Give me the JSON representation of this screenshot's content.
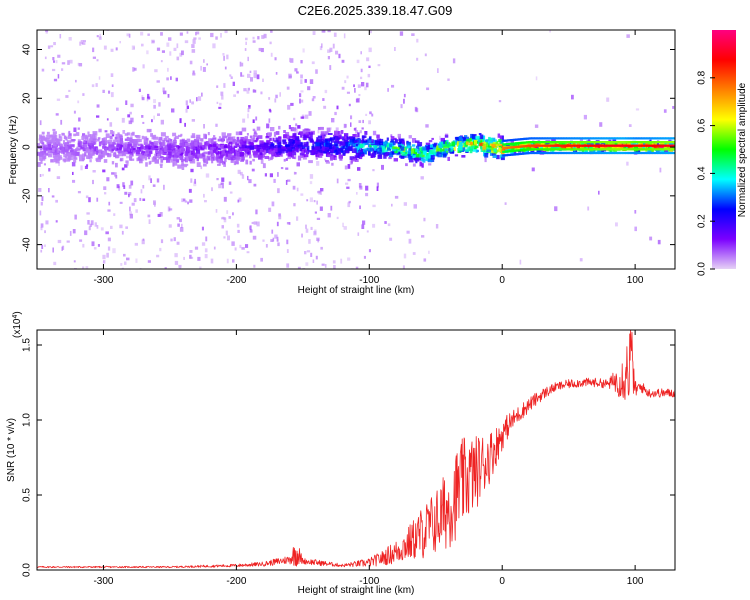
{
  "figure": {
    "title": "C2E6.2025.339.18.47.G09"
  },
  "chart_data": [
    {
      "type": "heatmap",
      "title": "C2E6.2025.339.18.47.G09",
      "xlabel": "Height of straight line (km)",
      "ylabel": "Frequency (Hz)",
      "xlim": [
        -350,
        130
      ],
      "ylim": [
        -50,
        48
      ],
      "xticks": [
        -300,
        -200,
        -100,
        0,
        100
      ],
      "yticks": [
        -40,
        -20,
        0,
        20,
        40
      ],
      "colorbar": {
        "label": "Normalized spectral amplitude",
        "range": [
          0.0,
          1.0
        ],
        "ticks": [
          "0.0",
          "0.2",
          "0.4",
          "0.6",
          "0.8"
        ],
        "tick_values": [
          0.0,
          0.2,
          0.4,
          0.6,
          0.8
        ],
        "colors": [
          "#e6d2f5",
          "#7b00ff",
          "#0000ff",
          "#00ffff",
          "#00ff00",
          "#ffff00",
          "#ff8000",
          "#ff0000",
          "#ff0080"
        ]
      },
      "ridge": {
        "description_points_x": [
          -350,
          -300,
          -250,
          -200,
          -150,
          -120,
          -100,
          -80,
          -60,
          -40,
          -20,
          0,
          20,
          50,
          90,
          100,
          130
        ],
        "center_freq": [
          0,
          1,
          -1,
          0,
          2,
          1,
          1,
          0,
          -2,
          1,
          2,
          0,
          1,
          1,
          1,
          1,
          1
        ],
        "amplitude": [
          0.08,
          0.1,
          0.12,
          0.15,
          0.25,
          0.3,
          0.4,
          0.5,
          0.55,
          0.6,
          0.7,
          0.8,
          0.85,
          0.9,
          0.95,
          0.9,
          0.95
        ]
      }
    },
    {
      "type": "line",
      "title": "",
      "xlabel": "Height of straight line (km)",
      "ylabel": "SNR (10 * v/v)",
      "scale_label": "(x10",
      "scale_exponent": "4",
      "scale_suffix": ")",
      "xlim": [
        -350,
        130
      ],
      "ylim": [
        0,
        1.6
      ],
      "xticks": [
        -300,
        -200,
        -100,
        0,
        100
      ],
      "yticks": [
        "0.0",
        "0.5",
        "1.0",
        "1.5"
      ],
      "ytick_values": [
        0.0,
        0.5,
        1.0,
        1.5
      ],
      "color": "#ee2222",
      "series": [
        {
          "name": "SNR",
          "x": [
            -350,
            -300,
            -250,
            -200,
            -180,
            -160,
            -155,
            -150,
            -140,
            -120,
            -110,
            -100,
            -90,
            -80,
            -70,
            -60,
            -50,
            -40,
            -35,
            -30,
            -25,
            -20,
            -15,
            -10,
            -5,
            0,
            5,
            10,
            20,
            30,
            40,
            50,
            60,
            70,
            80,
            85,
            90,
            95,
            97,
            100,
            105,
            110,
            120,
            130
          ],
          "y": [
            0.02,
            0.02,
            0.02,
            0.03,
            0.04,
            0.07,
            0.12,
            0.06,
            0.05,
            0.03,
            0.04,
            0.05,
            0.08,
            0.12,
            0.18,
            0.25,
            0.32,
            0.42,
            0.5,
            0.58,
            0.62,
            0.65,
            0.7,
            0.75,
            0.82,
            0.9,
            0.97,
            1.02,
            1.1,
            1.17,
            1.22,
            1.24,
            1.25,
            1.25,
            1.24,
            1.26,
            1.28,
            1.35,
            1.45,
            1.2,
            1.22,
            1.18,
            1.18,
            1.18
          ]
        }
      ],
      "noise_amplitude": [
        0.005,
        0.005,
        0.005,
        0.01,
        0.015,
        0.03,
        0.1,
        0.02,
        0.02,
        0.01,
        0.02,
        0.03,
        0.05,
        0.08,
        0.12,
        0.18,
        0.22,
        0.28,
        0.3,
        0.3,
        0.28,
        0.25,
        0.22,
        0.18,
        0.14,
        0.1,
        0.08,
        0.06,
        0.05,
        0.04,
        0.03,
        0.03,
        0.03,
        0.03,
        0.03,
        0.08,
        0.15,
        0.25,
        0.25,
        0.06,
        0.04,
        0.03,
        0.03,
        0.03
      ]
    }
  ]
}
